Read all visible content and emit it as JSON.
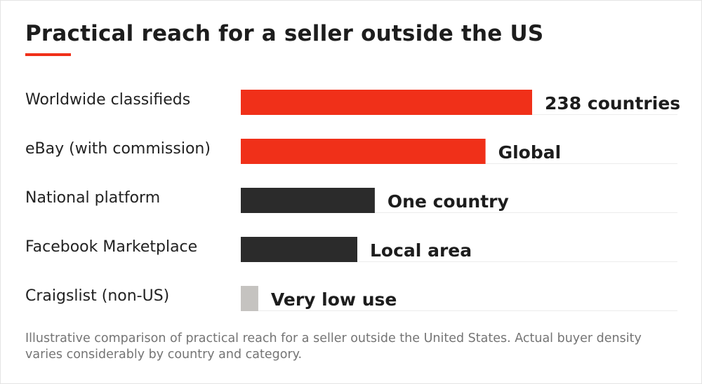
{
  "title": "Practical reach for a seller outside the US",
  "note": "Illustrative comparison of practical reach for a seller outside the United States. Actual buyer density varies considerably by country and category.",
  "colors": {
    "accent": "#f03019",
    "dark": "#2b2b2b",
    "light": "#c5c3c0",
    "gridline": "#ececec"
  },
  "chart_data": {
    "type": "bar",
    "orientation": "horizontal",
    "categories": [
      "Worldwide classifieds",
      "eBay (with commission)",
      "National platform",
      "Facebook Marketplace",
      "Craigslist (non-US)"
    ],
    "values": [
      100,
      84,
      46,
      40,
      6
    ],
    "value_labels": [
      "238 countries",
      "Global",
      "One country",
      "Local area",
      "Very low use"
    ],
    "bar_colors": [
      "#f03019",
      "#f03019",
      "#2b2b2b",
      "#2b2b2b",
      "#c5c3c0"
    ],
    "xlim": [
      0,
      100
    ],
    "grid": false,
    "legend": "none"
  }
}
